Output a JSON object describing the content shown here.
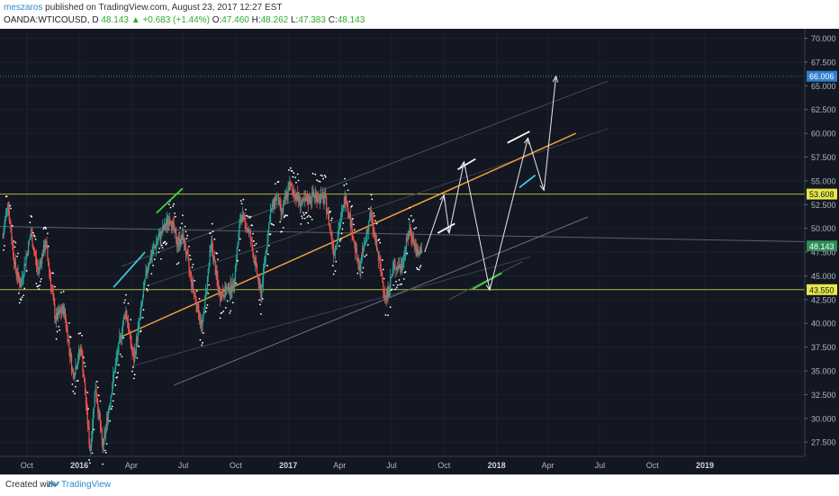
{
  "header": {
    "author": "meszaros",
    "published_text": "published on TradingView.com, August 23, 2017 12:27 EST",
    "symbol": "OANDA:WTICOUSD, D",
    "last": "48.143",
    "change": "+0.683 (+1.44%)",
    "open_label": "O:",
    "open": "47.460",
    "high_label": "H:",
    "high": "48.262",
    "low_label": "L:",
    "low": "47.383",
    "close_label": "C:",
    "close": "48.143"
  },
  "footer": {
    "created_with": "Created with",
    "brand": "TradingView"
  },
  "colors": {
    "background": "#131722",
    "candle_up": "#26a69a",
    "candle_down": "#ef5350",
    "sar_dots": "#ffffff",
    "orange_line": "#f0a040",
    "support_resistance": "#b5b542",
    "target_line": "#2f7fd0",
    "green_segment": "#3fd63f",
    "cyan_segment": "#3fc8e0",
    "arrows": "#e8e8e8"
  },
  "chart_data": {
    "type": "candlestick",
    "symbol": "OANDA:WTICOUSD",
    "timeframe": "D",
    "ylim": [
      26,
      71
    ],
    "y_ticks": [
      "70.000",
      "67.500",
      "65.000",
      "62.500",
      "60.000",
      "57.500",
      "55.000",
      "52.500",
      "50.000",
      "47.500",
      "45.000",
      "42.500",
      "40.000",
      "37.500",
      "35.000",
      "32.500",
      "30.000",
      "27.500"
    ],
    "x_ticks": [
      "Oct",
      "2016",
      "Apr",
      "Jul",
      "Oct",
      "2017",
      "Apr",
      "Jul",
      "Oct",
      "2018",
      "Apr",
      "Jul",
      "Oct",
      "2019"
    ],
    "price_labels": [
      {
        "text": "66.006",
        "value": 66.006,
        "style": "target"
      },
      {
        "text": "53.608",
        "value": 53.608,
        "style": "level"
      },
      {
        "text": "48.143",
        "value": 48.143,
        "style": "last"
      },
      {
        "text": "43.550",
        "value": 43.55,
        "style": "level"
      }
    ],
    "horizontal_levels": [
      66.006,
      53.608,
      43.55
    ],
    "price_path": [
      [
        "2015-08-20",
        49
      ],
      [
        "2015-08-28",
        53
      ],
      [
        "2015-09-10",
        46
      ],
      [
        "2015-09-20",
        44
      ],
      [
        "2015-10-08",
        49.5
      ],
      [
        "2015-10-20",
        45.5
      ],
      [
        "2015-11-03",
        48.5
      ],
      [
        "2015-11-20",
        40.5
      ],
      [
        "2015-12-05",
        41.5
      ],
      [
        "2015-12-21",
        34.5
      ],
      [
        "2016-01-04",
        37.5
      ],
      [
        "2016-01-20",
        26.5
      ],
      [
        "2016-01-29",
        33.5
      ],
      [
        "2016-02-11",
        26.8
      ],
      [
        "2016-03-01",
        34.5
      ],
      [
        "2016-03-22",
        41.5
      ],
      [
        "2016-04-05",
        36
      ],
      [
        "2016-04-29",
        46
      ],
      [
        "2016-05-15",
        48.5
      ],
      [
        "2016-06-08",
        51.2
      ],
      [
        "2016-06-20",
        48.5
      ],
      [
        "2016-07-01",
        49
      ],
      [
        "2016-07-15",
        44.5
      ],
      [
        "2016-08-03",
        39.5
      ],
      [
        "2016-08-19",
        48.5
      ],
      [
        "2016-09-02",
        43
      ],
      [
        "2016-09-16",
        43.5
      ],
      [
        "2016-09-27",
        44
      ],
      [
        "2016-10-10",
        51.5
      ],
      [
        "2016-10-25",
        49.5
      ],
      [
        "2016-11-14",
        43
      ],
      [
        "2016-11-30",
        51.5
      ],
      [
        "2016-12-12",
        53.5
      ],
      [
        "2016-12-20",
        51.5
      ],
      [
        "2017-01-03",
        54.5
      ],
      [
        "2017-01-25",
        52.5
      ],
      [
        "2017-02-15",
        53.5
      ],
      [
        "2017-03-07",
        53
      ],
      [
        "2017-03-22",
        47.5
      ],
      [
        "2017-04-12",
        53.5
      ],
      [
        "2017-05-05",
        45.5
      ],
      [
        "2017-05-25",
        51.5
      ],
      [
        "2017-06-21",
        42.5
      ],
      [
        "2017-07-05",
        46
      ],
      [
        "2017-07-18",
        46
      ],
      [
        "2017-08-02",
        50
      ],
      [
        "2017-08-16",
        47
      ],
      [
        "2017-08-23",
        48.143
      ]
    ],
    "trend_channel": {
      "center": {
        "from": [
          "2016-03-15",
          38.6
        ],
        "to": [
          "2018-05-20",
          60
        ]
      },
      "upper": {
        "from": [
          "2016-03-15",
          46
        ],
        "to": [
          "2018-07-15",
          65.5
        ]
      },
      "mid_upper": {
        "from": [
          "2016-05-01",
          44
        ],
        "to": [
          "2018-07-15",
          60.5
        ]
      },
      "lower": {
        "from": [
          "2016-06-15",
          33.5
        ],
        "to": [
          "2018-06-10",
          51.2
        ]
      },
      "mid_lower": {
        "from": [
          "2016-04-01",
          35.5
        ],
        "to": [
          "2018-03-01",
          47
        ]
      },
      "bottom": {
        "from": [
          "2017-10-10",
          42.5
        ],
        "to": [
          "2018-02-15",
          46.5
        ]
      }
    },
    "highlight_segments": [
      {
        "color": "cyan",
        "from": [
          "2016-03-01",
          43.8
        ],
        "to": [
          "2016-04-25",
          47.5
        ]
      },
      {
        "color": "green",
        "from": [
          "2016-05-15",
          51.6
        ],
        "to": [
          "2016-06-30",
          54.2
        ]
      },
      {
        "color": "green",
        "from": [
          "2017-11-20",
          43.6
        ],
        "to": [
          "2018-01-10",
          45.3
        ]
      },
      {
        "color": "cyan",
        "from": [
          "2018-02-10",
          54.3
        ],
        "to": [
          "2018-03-10",
          55.6
        ]
      }
    ],
    "projection_arrows": [
      [
        "2017-08-28",
        47.5
      ],
      [
        "2017-10-01",
        53.5
      ],
      [
        "2017-10-10",
        49.5
      ],
      [
        "2017-11-05",
        57
      ],
      [
        "2017-12-20",
        43.5
      ],
      [
        "2018-02-25",
        59.5
      ],
      [
        "2018-03-25",
        54
      ],
      [
        "2018-04-15",
        66
      ]
    ],
    "projection_caps": [
      {
        "from": [
          "2017-09-20",
          49.5
        ],
        "to": [
          "2017-10-20",
          50.5
        ]
      },
      {
        "from": [
          "2017-10-25",
          56.2
        ],
        "to": [
          "2017-11-25",
          57.3
        ]
      },
      {
        "from": [
          "2018-01-20",
          59.0
        ],
        "to": [
          "2018-02-28",
          60.2
        ]
      }
    ]
  }
}
